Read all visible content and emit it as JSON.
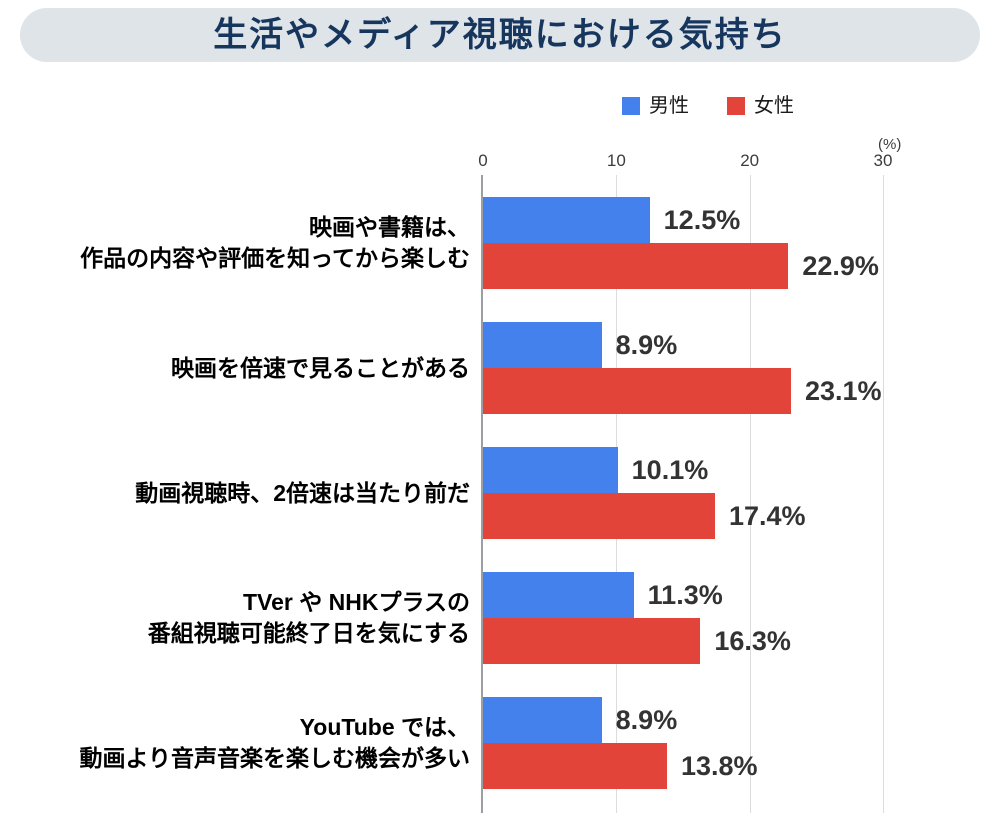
{
  "header": {
    "title": "生活やメディア視聴における気持ち"
  },
  "axis": {
    "unit": "(%)",
    "ticks": [
      0,
      10,
      20,
      30
    ]
  },
  "colors": {
    "male": "#4581ec",
    "female": "#e2443a",
    "title_band_bg": "#dee4e8",
    "title_text": "#17365e",
    "value_text": "#333333",
    "gridline": "#dcdcdc",
    "zero_line": "#9b9fa3"
  },
  "chart_data": {
    "type": "bar",
    "orientation": "horizontal",
    "title": "生活やメディア視聴における気持ち",
    "xlabel": "(%)",
    "xlim": [
      0,
      30
    ],
    "x_ticks": [
      0,
      10,
      20,
      30
    ],
    "grid": true,
    "legend_position": "top",
    "value_label_format": "{value}%",
    "categories": [
      [
        "映画や書籍は、",
        "作品の内容や評価を知ってから楽しむ"
      ],
      [
        "映画を倍速で見ることがある"
      ],
      [
        "動画視聴時、2倍速は当たり前だ"
      ],
      [
        "TVer や NHKプラスの",
        "番組視聴可能終了日を気にする"
      ],
      [
        "YouTube では、",
        "動画より音声音楽を楽しむ機会が多い"
      ]
    ],
    "series": [
      {
        "name": "男性",
        "color": "#4581ec",
        "values": [
          12.5,
          8.9,
          10.1,
          11.3,
          8.9
        ]
      },
      {
        "name": "女性",
        "color": "#e2443a",
        "values": [
          22.9,
          23.1,
          17.4,
          16.3,
          13.8
        ]
      }
    ]
  }
}
